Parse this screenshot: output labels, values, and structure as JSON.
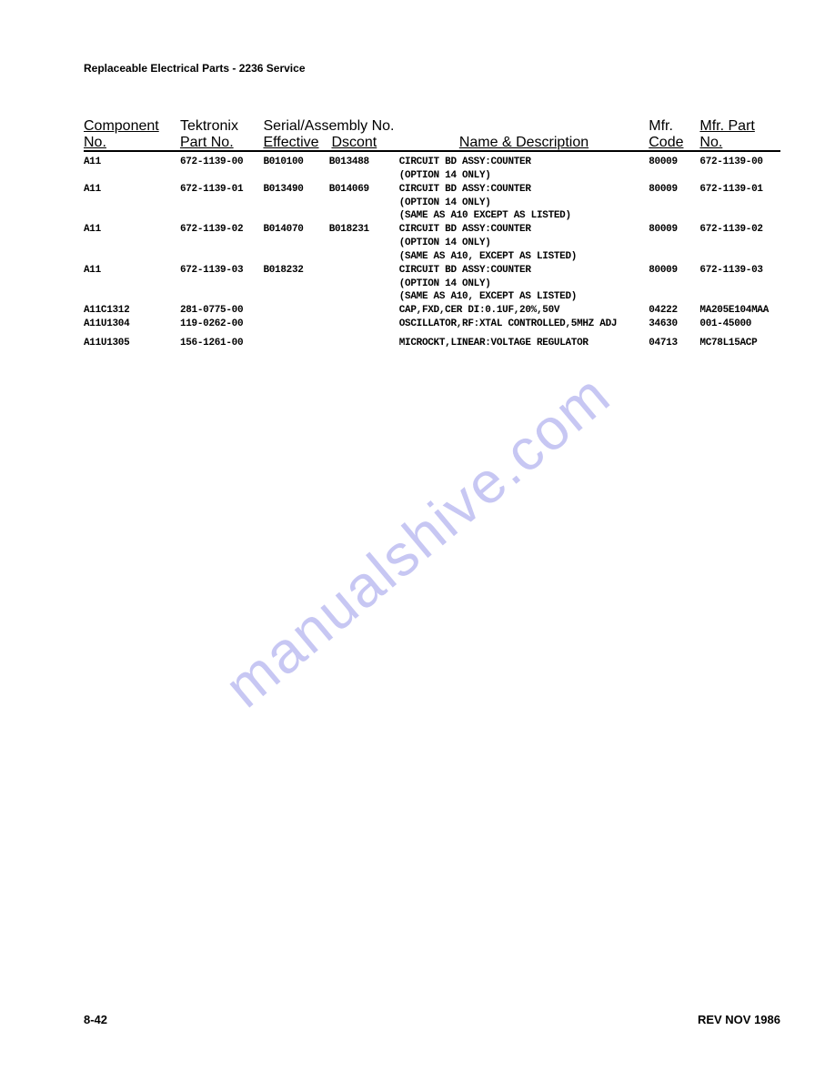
{
  "page": {
    "title": "Replaceable Electrical Parts - 2236 Service",
    "page_number": "8-42",
    "revision": "REV NOV 1986",
    "watermark": "manualshive.com",
    "background_color": "#ffffff",
    "text_color": "#000000",
    "watermark_color": "#9090e8"
  },
  "columns": {
    "component": "Component No.",
    "part": "Tektronix\nPart No.",
    "serial_header": "Serial/Assembly No.",
    "effective": "Effective",
    "dscont": "Dscont",
    "name": "Name & Description",
    "mfr": "Mfr.",
    "code": "Code",
    "mfr_part": "Mfr. Part No."
  },
  "rows": [
    {
      "component": "A11",
      "part": "672-1139-00",
      "effective": "B010100",
      "dscont": "B013488",
      "name": "CIRCUIT BD ASSY:COUNTER",
      "mfr": "80009",
      "mfrpart": "672-1139-00"
    },
    {
      "component": "",
      "part": "",
      "effective": "",
      "dscont": "",
      "name": "(OPTION 14 ONLY)",
      "mfr": "",
      "mfrpart": ""
    },
    {
      "component": "A11",
      "part": "672-1139-01",
      "effective": "B013490",
      "dscont": "B014069",
      "name": "CIRCUIT BD ASSY:COUNTER",
      "mfr": "80009",
      "mfrpart": "672-1139-01"
    },
    {
      "component": "",
      "part": "",
      "effective": "",
      "dscont": "",
      "name": "(OPTION 14 ONLY)",
      "mfr": "",
      "mfrpart": ""
    },
    {
      "component": "",
      "part": "",
      "effective": "",
      "dscont": "",
      "name": "(SAME AS A10 EXCEPT AS LISTED)",
      "mfr": "",
      "mfrpart": ""
    },
    {
      "component": "A11",
      "part": "672-1139-02",
      "effective": "B014070",
      "dscont": "B018231",
      "name": "CIRCUIT BD ASSY:COUNTER",
      "mfr": "80009",
      "mfrpart": "672-1139-02"
    },
    {
      "component": "",
      "part": "",
      "effective": "",
      "dscont": "",
      "name": "(OPTION 14 ONLY)",
      "mfr": "",
      "mfrpart": ""
    },
    {
      "component": "",
      "part": "",
      "effective": "",
      "dscont": "",
      "name": "(SAME AS A10, EXCEPT AS LISTED)",
      "mfr": "",
      "mfrpart": ""
    },
    {
      "component": "A11",
      "part": "672-1139-03",
      "effective": "B018232",
      "dscont": "",
      "name": "CIRCUIT BD ASSY:COUNTER",
      "mfr": "80009",
      "mfrpart": "672-1139-03"
    },
    {
      "component": "",
      "part": "",
      "effective": "",
      "dscont": "",
      "name": "(OPTION 14 ONLY)",
      "mfr": "",
      "mfrpart": ""
    },
    {
      "component": "",
      "part": "",
      "effective": "",
      "dscont": "",
      "name": "(SAME AS A10, EXCEPT AS LISTED)",
      "mfr": "",
      "mfrpart": ""
    },
    {
      "component": "A11C1312",
      "part": "281-0775-00",
      "effective": "",
      "dscont": "",
      "name": "CAP,FXD,CER DI:0.1UF,20%,50V",
      "mfr": "04222",
      "mfrpart": "MA205E104MAA"
    },
    {
      "component": "A11U1304",
      "part": "119-0262-00",
      "effective": "",
      "dscont": "",
      "name": "OSCILLATOR,RF:XTAL CONTROLLED,5MHZ ADJ",
      "mfr": "34630",
      "mfrpart": "001-45000"
    },
    {
      "gap": true
    },
    {
      "component": "A11U1305",
      "part": "156-1261-00",
      "effective": "",
      "dscont": "",
      "name": "MICROCKT,LINEAR:VOLTAGE REGULATOR",
      "mfr": "04713",
      "mfrpart": "MC78L15ACP"
    }
  ]
}
